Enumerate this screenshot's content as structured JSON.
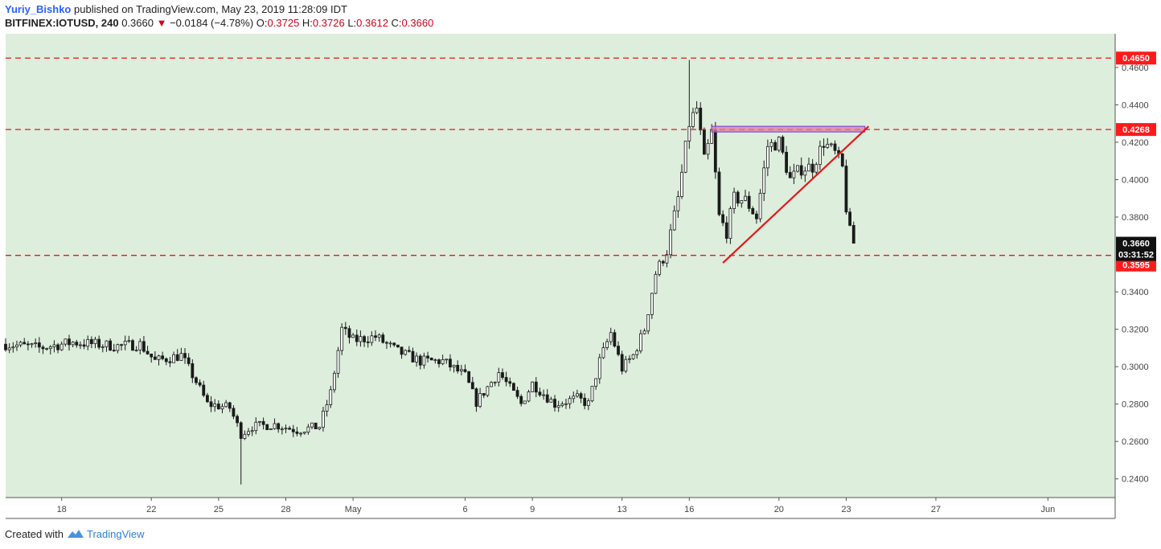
{
  "header": {
    "author": "Yuriy_Bishko",
    "published_text": "published on TradingView.com, May 23, 2019 11:28:09 IDT",
    "symbol": "BITFINEX:IOTUSD, 240",
    "last": "0.3660",
    "change": "−0.0184 (−4.78%)",
    "o_label": "O:",
    "o_value": "0.3725",
    "h_label": "H:",
    "h_value": "0.3726",
    "l_label": "L:",
    "l_value": "0.3612",
    "c_label": "C:",
    "c_value": "0.3660"
  },
  "footer": {
    "created_with": "Created with",
    "brand": "TradingView"
  },
  "colors": {
    "background": "#ddeedd",
    "hline": "#e8161b",
    "trendline": "#e8161b",
    "zone_fill": "#e07aa0",
    "zone_stroke": "#7b4fd6",
    "candle": "#1a1a1a",
    "last_price_tag": "#111111",
    "level_tag": "#ff1a1a"
  },
  "chart_data": {
    "type": "candlestick",
    "symbol": "BITFINEX:IOTUSD",
    "timeframe": "240",
    "y_axis": {
      "ticks": [
        "0.4600",
        "0.4400",
        "0.4200",
        "0.4000",
        "0.3800",
        "0.3400",
        "0.3200",
        "0.3000",
        "0.2800",
        "0.2600",
        "0.2400"
      ],
      "range": [
        0.23,
        0.478
      ]
    },
    "x_axis": {
      "ticks": [
        {
          "label": "18",
          "date": "2019-04-18"
        },
        {
          "label": "22",
          "date": "2019-04-22"
        },
        {
          "label": "25",
          "date": "2019-04-25"
        },
        {
          "label": "28",
          "date": "2019-04-28"
        },
        {
          "label": "May",
          "date": "2019-05-01"
        },
        {
          "label": "6",
          "date": "2019-05-06"
        },
        {
          "label": "9",
          "date": "2019-05-09"
        },
        {
          "label": "13",
          "date": "2019-05-13"
        },
        {
          "label": "16",
          "date": "2019-05-16"
        },
        {
          "label": "20",
          "date": "2019-05-20"
        },
        {
          "label": "23",
          "date": "2019-05-23"
        },
        {
          "label": "27",
          "date": "2019-05-27"
        },
        {
          "label": "Jun",
          "date": "2019-06-01"
        }
      ]
    },
    "horizontal_levels": [
      {
        "price": 0.465,
        "label": "0.4650"
      },
      {
        "price": 0.4268,
        "label": "0.4268"
      },
      {
        "price": 0.3595,
        "label": "0.3595"
      }
    ],
    "last_price": {
      "value": "0.3660",
      "countdown": "03:31:52",
      "price": 0.366
    },
    "zone": {
      "from_date": "2019-05-17T00:00",
      "to_date": "2019-05-23T20:00",
      "low": 0.4255,
      "high": 0.4285
    },
    "trendline": {
      "from": {
        "date": "2019-05-17T12:00",
        "price": 0.3555
      },
      "to": {
        "date": "2019-05-24T00:00",
        "price": 0.4285
      }
    },
    "candles_summary": {
      "start": "2019-04-15T12:00",
      "end": "2019-05-23T08:00",
      "interval_hours": 4,
      "open": 0.312,
      "high_max": 0.464,
      "low_min": 0.237,
      "close": 0.366
    },
    "keypoints": [
      [
        "2019-04-15T12:00",
        0.312
      ],
      [
        "2019-04-17T00:00",
        0.31
      ],
      [
        "2019-04-18T12:00",
        0.313
      ],
      [
        "2019-04-20T12:00",
        0.311
      ],
      [
        "2019-04-21T12:00",
        0.312
      ],
      [
        "2019-04-22T04:00",
        0.303
      ],
      [
        "2019-04-23T08:00",
        0.306
      ],
      [
        "2019-04-24T00:00",
        0.292
      ],
      [
        "2019-04-24T12:00",
        0.28
      ],
      [
        "2019-04-25T12:00",
        0.278
      ],
      [
        "2019-04-26T00:00",
        0.264
      ],
      [
        "2019-04-26T12:00",
        0.268
      ],
      [
        "2019-04-27T12:00",
        0.269
      ],
      [
        "2019-04-28T12:00",
        0.266
      ],
      [
        "2019-04-29T12:00",
        0.268
      ],
      [
        "2019-04-30T00:00",
        0.286
      ],
      [
        "2019-04-30T12:00",
        0.32
      ],
      [
        "2019-05-01T00:00",
        0.314
      ],
      [
        "2019-05-02T00:00",
        0.316
      ],
      [
        "2019-05-03T00:00",
        0.308
      ],
      [
        "2019-05-04T00:00",
        0.303
      ],
      [
        "2019-05-05T00:00",
        0.303
      ],
      [
        "2019-05-06T00:00",
        0.295
      ],
      [
        "2019-05-06T12:00",
        0.281
      ],
      [
        "2019-05-07T12:00",
        0.297
      ],
      [
        "2019-05-08T12:00",
        0.28
      ],
      [
        "2019-05-09T00:00",
        0.291
      ],
      [
        "2019-05-10T00:00",
        0.28
      ],
      [
        "2019-05-11T00:00",
        0.283
      ],
      [
        "2019-05-11T12:00",
        0.28
      ],
      [
        "2019-05-12T00:00",
        0.303
      ],
      [
        "2019-05-12T12:00",
        0.318
      ],
      [
        "2019-05-13T00:00",
        0.299
      ],
      [
        "2019-05-13T12:00",
        0.306
      ],
      [
        "2019-05-14T00:00",
        0.32
      ],
      [
        "2019-05-14T12:00",
        0.35
      ],
      [
        "2019-05-15T00:00",
        0.362
      ],
      [
        "2019-05-15T12:00",
        0.39
      ],
      [
        "2019-05-16T00:00",
        0.43
      ],
      [
        "2019-05-16T08:00",
        0.438
      ],
      [
        "2019-05-16T16:00",
        0.41
      ],
      [
        "2019-05-17T00:00",
        0.425
      ],
      [
        "2019-05-17T08:00",
        0.38
      ],
      [
        "2019-05-17T16:00",
        0.372
      ],
      [
        "2019-05-18T00:00",
        0.39
      ],
      [
        "2019-05-18T12:00",
        0.389
      ],
      [
        "2019-05-19T00:00",
        0.38
      ],
      [
        "2019-05-19T12:00",
        0.418
      ],
      [
        "2019-05-20T00:00",
        0.42
      ],
      [
        "2019-05-20T12:00",
        0.4
      ],
      [
        "2019-05-21T00:00",
        0.406
      ],
      [
        "2019-05-21T12:00",
        0.407
      ],
      [
        "2019-05-22T00:00",
        0.42
      ],
      [
        "2019-05-22T12:00",
        0.414
      ],
      [
        "2019-05-22T20:00",
        0.406
      ],
      [
        "2019-05-23T00:00",
        0.385
      ],
      [
        "2019-05-23T04:00",
        0.372
      ],
      [
        "2019-05-23T08:00",
        0.366
      ]
    ]
  }
}
